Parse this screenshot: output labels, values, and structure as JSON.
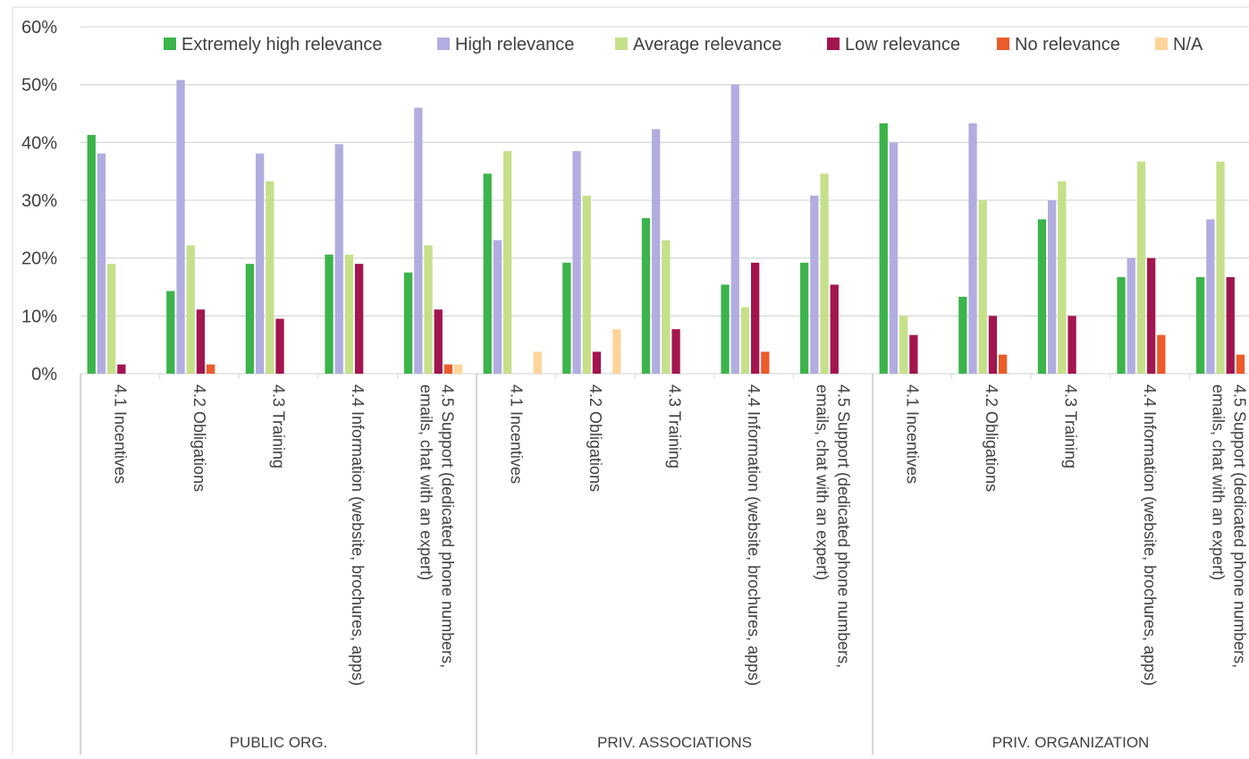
{
  "chart_data": {
    "type": "bar",
    "ylim": [
      0,
      60
    ],
    "y_ticks": [
      "0%",
      "10%",
      "20%",
      "30%",
      "40%",
      "50%",
      "60%"
    ],
    "grid": true,
    "legend_position": "top",
    "groups": [
      {
        "name": "PUBLIC ORG.",
        "categories": [
          "4.1 Incentives",
          "4.2 Obligations",
          "4.3 Training",
          "4.4 Information (website, brochures, apps)",
          "4.5 Support (dedicated phone numbers, emails, chat with an expert)"
        ]
      },
      {
        "name": "PRIV. ASSOCIATIONS",
        "categories": [
          "4.1 Incentives",
          "4.2 Obligations",
          "4.3 Training",
          "4.4 Information (website, brochures, apps)",
          "4.5 Support (dedicated phone numbers, emails, chat with an expert)"
        ]
      },
      {
        "name": "PRIV. ORGANIZATION",
        "categories": [
          "4.1 Incentives",
          "4.2 Obligations",
          "4.3 Training",
          "4.4 Information (website, brochures, apps)",
          "4.5 Support (dedicated phone numbers, emails, chat with an expert)"
        ]
      }
    ],
    "series": [
      {
        "name": "Extremely high relevance",
        "color": "#3cb44b",
        "values": [
          41.3,
          14.3,
          19.0,
          20.6,
          17.5,
          34.6,
          19.2,
          26.9,
          15.4,
          19.2,
          43.3,
          13.3,
          26.7,
          16.7,
          16.7
        ]
      },
      {
        "name": "High relevance",
        "color": "#b2ade0",
        "values": [
          38.1,
          50.8,
          38.1,
          39.7,
          46.0,
          23.1,
          38.5,
          42.3,
          50.0,
          30.8,
          40.0,
          43.3,
          30.0,
          20.0,
          26.7
        ]
      },
      {
        "name": "Average relevance",
        "color": "#c6e08a",
        "values": [
          19.0,
          22.2,
          33.3,
          20.6,
          22.2,
          38.5,
          30.8,
          23.1,
          11.5,
          34.6,
          10.0,
          30.0,
          33.3,
          36.7,
          36.7
        ]
      },
      {
        "name": "Low relevance",
        "color": "#a3154f",
        "values": [
          1.6,
          11.1,
          9.5,
          19.0,
          11.1,
          0,
          3.8,
          7.7,
          19.2,
          15.4,
          6.7,
          10.0,
          10.0,
          20.0,
          16.7
        ]
      },
      {
        "name": "No relevance",
        "color": "#ec5b2a",
        "values": [
          0,
          1.6,
          0,
          0,
          1.6,
          0,
          0,
          0,
          3.8,
          0,
          0,
          3.3,
          0,
          6.7,
          3.3
        ]
      },
      {
        "name": "N/A",
        "color": "#fdd49a",
        "values": [
          0,
          0,
          0,
          0,
          1.6,
          3.8,
          7.7,
          0,
          0,
          0,
          0,
          0,
          0,
          0,
          0
        ]
      }
    ]
  }
}
